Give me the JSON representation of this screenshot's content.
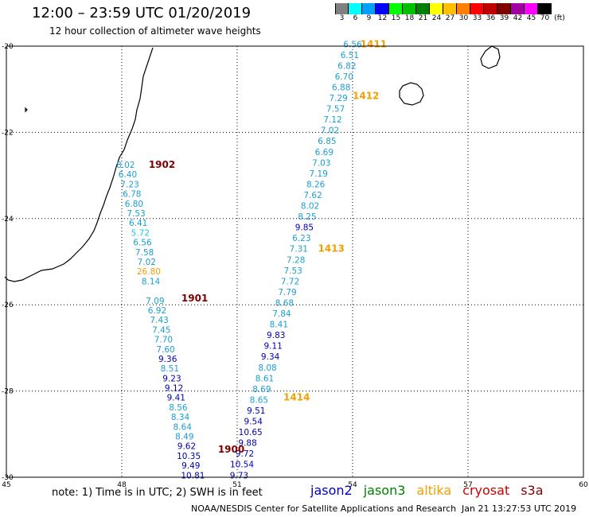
{
  "header": {
    "title": "12:00 – 23:59 UTC 01/20/2019",
    "subtitle": "12 hour collection of altimeter wave heights"
  },
  "legend": {
    "unit": "(ft)",
    "items": [
      {
        "label": "3",
        "color": "#808080"
      },
      {
        "label": "6",
        "color": "#00ffff"
      },
      {
        "label": "9",
        "color": "#00a0ff"
      },
      {
        "label": "12",
        "color": "#0000ff"
      },
      {
        "label": "15",
        "color": "#00ff00"
      },
      {
        "label": "18",
        "color": "#00c000"
      },
      {
        "label": "21",
        "color": "#008000"
      },
      {
        "label": "24",
        "color": "#ffff00"
      },
      {
        "label": "27",
        "color": "#ffc000"
      },
      {
        "label": "30",
        "color": "#ff8000"
      },
      {
        "label": "33",
        "color": "#ff0000"
      },
      {
        "label": "36",
        "color": "#c00000"
      },
      {
        "label": "39",
        "color": "#800000"
      },
      {
        "label": "42",
        "color": "#a000a0"
      },
      {
        "label": "45",
        "color": "#ff00ff"
      },
      {
        "label": "70",
        "color": "#000000"
      }
    ]
  },
  "map": {
    "lon_ticks": [
      45,
      48,
      51,
      54,
      57,
      60
    ],
    "lat_ticks": [
      -20,
      -22,
      -24,
      -26,
      -28,
      -30
    ],
    "lon_labels": [
      "45",
      "48",
      "51",
      "54",
      "57",
      "60"
    ],
    "lat_labels": [
      "-20",
      "-22",
      "-24",
      "-26",
      "-28",
      "-30"
    ]
  },
  "tracks": [
    {
      "id": "track-west",
      "lon_top": 48.1,
      "lon_bottom": 49.85,
      "lat_top": -22.75,
      "lat_bottom": -29.95,
      "values": [
        {
          "v": "8.02",
          "c": "#1a9fd0"
        },
        {
          "v": "6.40",
          "c": "#1a9fd0"
        },
        {
          "v": "7.23",
          "c": "#1a9fd0"
        },
        {
          "v": "6.78",
          "c": "#1a9fd0"
        },
        {
          "v": "6.80",
          "c": "#1a9fd0"
        },
        {
          "v": "7.53",
          "c": "#1a9fd0"
        },
        {
          "v": "6.41",
          "c": "#1a9fd0"
        },
        {
          "v": "5.72",
          "c": "#20c8e0"
        },
        {
          "v": "6.56",
          "c": "#1a9fd0"
        },
        {
          "v": "7.58",
          "c": "#1a9fd0"
        },
        {
          "v": "7.02",
          "c": "#1a9fd0"
        },
        {
          "v": "26.80",
          "c": "#f0a000"
        },
        {
          "v": "8.14",
          "c": "#1a9fd0"
        },
        {
          "v": "",
          "c": "#1a9fd0"
        },
        {
          "v": "7.09",
          "c": "#1a9fd0"
        },
        {
          "v": "6.92",
          "c": "#1a9fd0"
        },
        {
          "v": "7.43",
          "c": "#1a9fd0"
        },
        {
          "v": "7.45",
          "c": "#1a9fd0"
        },
        {
          "v": "7.70",
          "c": "#1a9fd0"
        },
        {
          "v": "7.60",
          "c": "#1a9fd0"
        },
        {
          "v": "9.36",
          "c": "#0000b0"
        },
        {
          "v": "8.51",
          "c": "#1a9fd0"
        },
        {
          "v": "9.23",
          "c": "#0000b0"
        },
        {
          "v": "9.12",
          "c": "#0000b0"
        },
        {
          "v": "9.41",
          "c": "#0000b0"
        },
        {
          "v": "8.56",
          "c": "#1a9fd0"
        },
        {
          "v": "8.34",
          "c": "#1a9fd0"
        },
        {
          "v": "8.64",
          "c": "#1a9fd0"
        },
        {
          "v": "8.49",
          "c": "#1a9fd0"
        },
        {
          "v": "9.62",
          "c": "#0000b0"
        },
        {
          "v": "10.35",
          "c": "#0000b0"
        },
        {
          "v": "9.49",
          "c": "#0000b0"
        },
        {
          "v": "10.81",
          "c": "#0000b0"
        }
      ]
    },
    {
      "id": "track-east",
      "lon_top": 54.0,
      "lon_bottom": 51.05,
      "lat_top": -19.95,
      "lat_bottom": -29.95,
      "values": [
        {
          "v": "6.56",
          "c": "#1a9fd0"
        },
        {
          "v": "6.51",
          "c": "#1a9fd0"
        },
        {
          "v": "6.82",
          "c": "#1a9fd0"
        },
        {
          "v": "6.70",
          "c": "#1a9fd0"
        },
        {
          "v": "6.88",
          "c": "#1a9fd0"
        },
        {
          "v": "7.29",
          "c": "#1a9fd0"
        },
        {
          "v": "7.57",
          "c": "#1a9fd0"
        },
        {
          "v": "7.12",
          "c": "#1a9fd0"
        },
        {
          "v": "7.02",
          "c": "#1a9fd0"
        },
        {
          "v": "6.85",
          "c": "#1a9fd0"
        },
        {
          "v": "6.69",
          "c": "#1a9fd0"
        },
        {
          "v": "7.03",
          "c": "#1a9fd0"
        },
        {
          "v": "7.19",
          "c": "#1a9fd0"
        },
        {
          "v": "8.26",
          "c": "#1a9fd0"
        },
        {
          "v": "7.62",
          "c": "#1a9fd0"
        },
        {
          "v": "8.02",
          "c": "#1a9fd0"
        },
        {
          "v": "8.25",
          "c": "#1a9fd0"
        },
        {
          "v": "9.85",
          "c": "#0000b0"
        },
        {
          "v": "6.23",
          "c": "#1a9fd0"
        },
        {
          "v": "7.31",
          "c": "#1a9fd0"
        },
        {
          "v": "7.28",
          "c": "#1a9fd0"
        },
        {
          "v": "7.53",
          "c": "#1a9fd0"
        },
        {
          "v": "7.72",
          "c": "#1a9fd0"
        },
        {
          "v": "7.79",
          "c": "#1a9fd0"
        },
        {
          "v": "8.68",
          "c": "#1a9fd0"
        },
        {
          "v": "7.84",
          "c": "#1a9fd0"
        },
        {
          "v": "8.41",
          "c": "#1a9fd0"
        },
        {
          "v": "9.83",
          "c": "#0000b0"
        },
        {
          "v": "9.11",
          "c": "#0000b0"
        },
        {
          "v": "9.34",
          "c": "#0000b0"
        },
        {
          "v": "8.08",
          "c": "#1a9fd0"
        },
        {
          "v": "8.61",
          "c": "#1a9fd0"
        },
        {
          "v": "8.69",
          "c": "#1a9fd0"
        },
        {
          "v": "8.65",
          "c": "#1a9fd0"
        },
        {
          "v": "9.51",
          "c": "#0000b0"
        },
        {
          "v": "9.54",
          "c": "#0000b0"
        },
        {
          "v": "10.65",
          "c": "#0000b0"
        },
        {
          "v": "9.88",
          "c": "#0000b0"
        },
        {
          "v": "9.72",
          "c": "#0000b0"
        },
        {
          "v": "10.54",
          "c": "#0000b0"
        },
        {
          "v": "9.73",
          "c": "#0000b0"
        }
      ]
    }
  ],
  "time_labels": [
    {
      "text": "1411",
      "lon": 54.2,
      "lat": -19.95,
      "color": "#f0a000"
    },
    {
      "text": "1412",
      "lon": 54.0,
      "lat": -21.15,
      "color": "#f0a000"
    },
    {
      "text": "1413",
      "lon": 53.1,
      "lat": -24.7,
      "color": "#f0a000"
    },
    {
      "text": "1414",
      "lon": 52.2,
      "lat": -28.15,
      "color": "#f0a000"
    },
    {
      "text": "1902",
      "lon": 48.7,
      "lat": -22.75,
      "color": "#800000"
    },
    {
      "text": "1901",
      "lon": 49.55,
      "lat": -25.85,
      "color": "#800000"
    },
    {
      "text": "1900",
      "lon": 50.5,
      "lat": -29.35,
      "color": "#800000"
    }
  ],
  "footer": {
    "note": "note:  1) Time is in UTC;  2) SWH is in feet",
    "satellites": [
      {
        "name": "jason2",
        "color": "#0000cc"
      },
      {
        "name": "jason3",
        "color": "#008000"
      },
      {
        "name": "altika",
        "color": "#f0a000"
      },
      {
        "name": "cryosat",
        "color": "#cc0000"
      },
      {
        "name": "s3a",
        "color": "#800000"
      }
    ],
    "credit": "NOAA/NESDIS Center for Satellite Applications and Research",
    "timestamp": "Jan 21 13:27:53 UTC 2019"
  }
}
